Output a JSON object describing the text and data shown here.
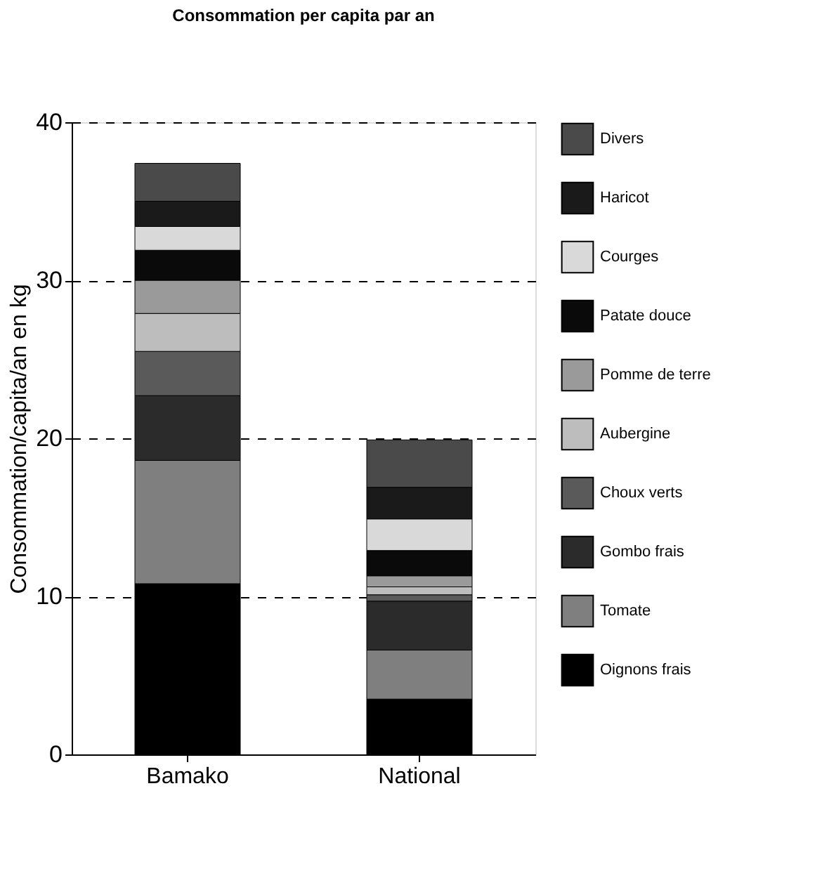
{
  "chart_data": {
    "type": "bar",
    "title": "Consommation per capita par an",
    "ylabel": "Consommation/capita/an en kg",
    "categories": [
      "Bamako",
      "National"
    ],
    "stacked": true,
    "ylim": [
      0,
      40
    ],
    "yticks": [
      0,
      10,
      20,
      30,
      40
    ],
    "grid": "y",
    "legend": "right",
    "series": [
      {
        "name": "Oignons frais",
        "color": "#000000",
        "values": [
          10.8,
          3.5
        ]
      },
      {
        "name": "Tomate",
        "color": "#7f7f7f",
        "values": [
          7.8,
          3.1
        ]
      },
      {
        "name": "Gombo frais",
        "color": "#2b2b2b",
        "values": [
          4.1,
          3.1
        ]
      },
      {
        "name": "Choux verts",
        "color": "#5a5a5a",
        "values": [
          2.8,
          0.4
        ]
      },
      {
        "name": "Aubergine",
        "color": "#bdbdbd",
        "values": [
          2.4,
          0.5
        ]
      },
      {
        "name": "Pomme de terre",
        "color": "#9a9a9a",
        "values": [
          2.1,
          0.7
        ]
      },
      {
        "name": "Patate douce",
        "color": "#0a0a0a",
        "values": [
          1.9,
          1.6
        ]
      },
      {
        "name": "Courges",
        "color": "#d9d9d9",
        "values": [
          1.5,
          2.0
        ]
      },
      {
        "name": "Haricot",
        "color": "#1a1a1a",
        "values": [
          1.6,
          2.0
        ]
      },
      {
        "name": "Divers",
        "color": "#4a4a4a",
        "values": [
          2.4,
          3.0
        ]
      }
    ]
  }
}
